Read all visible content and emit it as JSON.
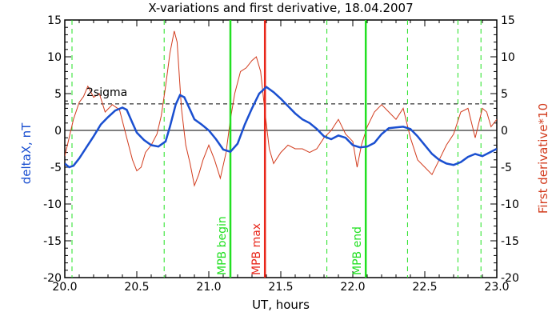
{
  "chart_data": {
    "type": "line",
    "title": "X-variations and first derivative, 18.04.2007",
    "xlabel": "UT, hours",
    "ylabel_left": "deltaX, nT",
    "ylabel_right": "First derivative*10",
    "xlim": [
      20.0,
      23.0
    ],
    "ylim": [
      -20,
      15
    ],
    "xticks": [
      "20.0",
      "20.5",
      "21.0",
      "21.5",
      "22.0",
      "22.5",
      "23.0"
    ],
    "xtick_values": [
      20.0,
      20.5,
      21.0,
      21.5,
      22.0,
      22.5,
      23.0
    ],
    "yticks": [
      "-20",
      "-15",
      "-10",
      "-5",
      "0",
      "5",
      "10",
      "15"
    ],
    "ytick_values": [
      -20,
      -15,
      -10,
      -5,
      0,
      5,
      10,
      15
    ],
    "colors": {
      "deltaX": "#1a4fd0",
      "derivative": "#d23c1e",
      "boundary": "#22e022",
      "max": "#e8261a"
    },
    "sigma_label": "2sigma",
    "sigma_value": 3.6,
    "zero_line": 0,
    "dashed_verticals": [
      20.05,
      20.69,
      21.82,
      22.38,
      22.73,
      22.89
    ],
    "annotations": [
      {
        "label": "MPB begin",
        "x": 21.15,
        "color": "#22e022"
      },
      {
        "label": "MPB max",
        "x": 21.39,
        "color": "#e8261a"
      },
      {
        "label": "MPB end",
        "x": 22.09,
        "color": "#22e022"
      }
    ],
    "series": [
      {
        "name": "deltaX, nT",
        "x": [
          20.0,
          20.03,
          20.06,
          20.1,
          20.15,
          20.2,
          20.25,
          20.3,
          20.35,
          20.4,
          20.43,
          20.47,
          20.5,
          20.55,
          20.6,
          20.65,
          20.7,
          20.73,
          20.77,
          20.8,
          20.83,
          20.87,
          20.9,
          20.95,
          21.0,
          21.05,
          21.1,
          21.15,
          21.2,
          21.25,
          21.3,
          21.35,
          21.4,
          21.45,
          21.5,
          21.55,
          21.6,
          21.65,
          21.7,
          21.75,
          21.8,
          21.85,
          21.9,
          21.95,
          22.0,
          22.05,
          22.1,
          22.15,
          22.2,
          22.25,
          22.3,
          22.35,
          22.4,
          22.45,
          22.5,
          22.55,
          22.6,
          22.65,
          22.7,
          22.75,
          22.8,
          22.85,
          22.9,
          22.95,
          23.0
        ],
        "y": [
          -4.5,
          -5.0,
          -4.8,
          -3.8,
          -2.3,
          -0.8,
          0.8,
          1.8,
          2.7,
          3.1,
          2.8,
          1.0,
          -0.3,
          -1.3,
          -2.0,
          -2.2,
          -1.5,
          0.5,
          3.5,
          4.8,
          4.5,
          2.8,
          1.5,
          0.8,
          0.0,
          -1.2,
          -2.6,
          -2.9,
          -1.8,
          0.8,
          3.0,
          5.0,
          5.9,
          5.2,
          4.3,
          3.3,
          2.3,
          1.5,
          1.0,
          0.2,
          -0.8,
          -1.2,
          -0.7,
          -1.0,
          -2.0,
          -2.3,
          -2.2,
          -1.7,
          -0.5,
          0.3,
          0.4,
          0.5,
          0.2,
          -0.8,
          -2.0,
          -3.2,
          -4.0,
          -4.5,
          -4.7,
          -4.3,
          -3.6,
          -3.2,
          -3.5,
          -3.0,
          -2.5
        ]
      },
      {
        "name": "First derivative*10",
        "x": [
          20.0,
          20.03,
          20.06,
          20.1,
          20.13,
          20.16,
          20.2,
          20.24,
          20.28,
          20.33,
          20.38,
          20.43,
          20.47,
          20.5,
          20.53,
          20.56,
          20.6,
          20.64,
          20.67,
          20.7,
          20.73,
          20.76,
          20.78,
          20.81,
          20.84,
          20.87,
          20.9,
          20.93,
          20.96,
          21.0,
          21.04,
          21.08,
          21.12,
          21.15,
          21.18,
          21.22,
          21.26,
          21.3,
          21.33,
          21.36,
          21.39,
          21.42,
          21.45,
          21.5,
          21.55,
          21.6,
          21.65,
          21.7,
          21.75,
          21.8,
          21.85,
          21.9,
          21.95,
          22.0,
          22.03,
          22.06,
          22.1,
          22.15,
          22.2,
          22.25,
          22.3,
          22.35,
          22.4,
          22.45,
          22.5,
          22.55,
          22.6,
          22.65,
          22.7,
          22.75,
          22.8,
          22.85,
          22.9,
          22.93,
          22.96,
          23.0
        ],
        "y": [
          -3.5,
          -1.0,
          1.5,
          3.8,
          4.6,
          6.0,
          4.5,
          5.0,
          2.5,
          3.5,
          2.8,
          -1.0,
          -4.0,
          -5.5,
          -5.0,
          -3.0,
          -2.0,
          -0.5,
          2.0,
          6.0,
          10.5,
          13.5,
          12.0,
          3.0,
          -2.0,
          -4.5,
          -7.5,
          -6.0,
          -4.0,
          -2.0,
          -4.0,
          -6.5,
          -3.0,
          1.5,
          5.0,
          8.0,
          8.5,
          9.5,
          10.0,
          8.0,
          2.5,
          -2.5,
          -4.5,
          -3.0,
          -2.0,
          -2.5,
          -2.5,
          -3.0,
          -2.5,
          -1.0,
          0.0,
          1.5,
          -0.5,
          -1.5,
          -5.0,
          -2.0,
          0.5,
          2.5,
          3.5,
          2.5,
          1.5,
          3.0,
          -1.0,
          -4.0,
          -5.0,
          -6.0,
          -4.0,
          -2.0,
          -0.5,
          2.5,
          3.0,
          -1.0,
          3.0,
          2.5,
          0.5,
          1.5
        ]
      }
    ]
  }
}
